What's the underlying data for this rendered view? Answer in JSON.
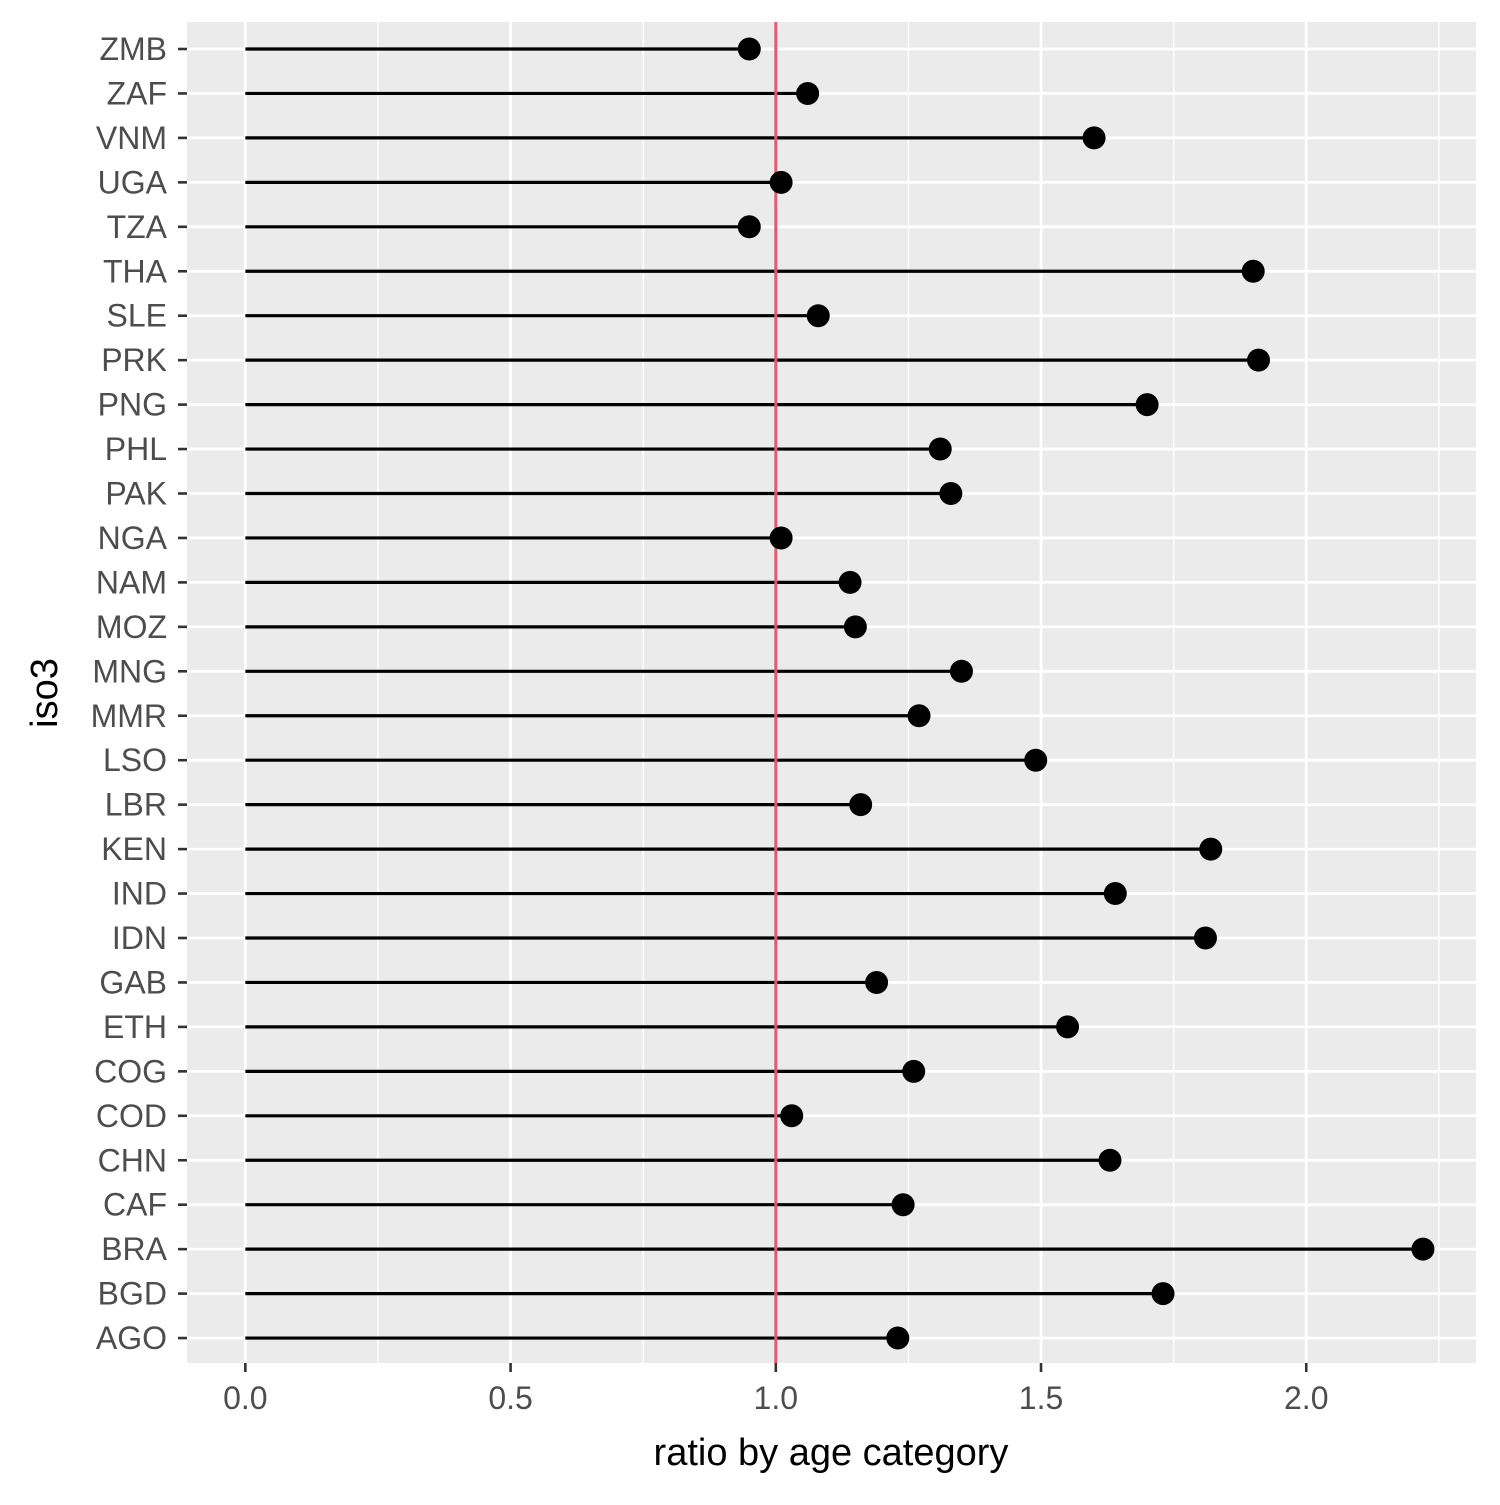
{
  "chart_data": {
    "type": "lollipop",
    "xlabel": "ratio by age category",
    "ylabel": "iso3",
    "xlim": [
      -0.11,
      2.32
    ],
    "x_ticks": [
      0.0,
      0.5,
      1.0,
      1.5,
      2.0
    ],
    "x_tick_labels": [
      "0.0",
      "0.5",
      "1.0",
      "1.5",
      "2.0"
    ],
    "reference_line": {
      "x": 1.0,
      "color": "#e05a72"
    },
    "grid": true,
    "panel_background": "#ebebeb",
    "grid_color": "#ffffff",
    "point_color": "#000000",
    "categories": [
      "ZMB",
      "ZAF",
      "VNM",
      "UGA",
      "TZA",
      "THA",
      "SLE",
      "PRK",
      "PNG",
      "PHL",
      "PAK",
      "NGA",
      "NAM",
      "MOZ",
      "MNG",
      "MMR",
      "LSO",
      "LBR",
      "KEN",
      "IND",
      "IDN",
      "GAB",
      "ETH",
      "COG",
      "COD",
      "CHN",
      "CAF",
      "BRA",
      "BGD",
      "AGO"
    ],
    "values": [
      0.95,
      1.06,
      1.6,
      1.01,
      0.95,
      1.9,
      1.08,
      1.91,
      1.7,
      1.31,
      1.33,
      1.01,
      1.14,
      1.15,
      1.35,
      1.27,
      1.49,
      1.16,
      1.82,
      1.64,
      1.81,
      1.19,
      1.55,
      1.26,
      1.03,
      1.63,
      1.24,
      2.22,
      1.73,
      1.23
    ]
  }
}
